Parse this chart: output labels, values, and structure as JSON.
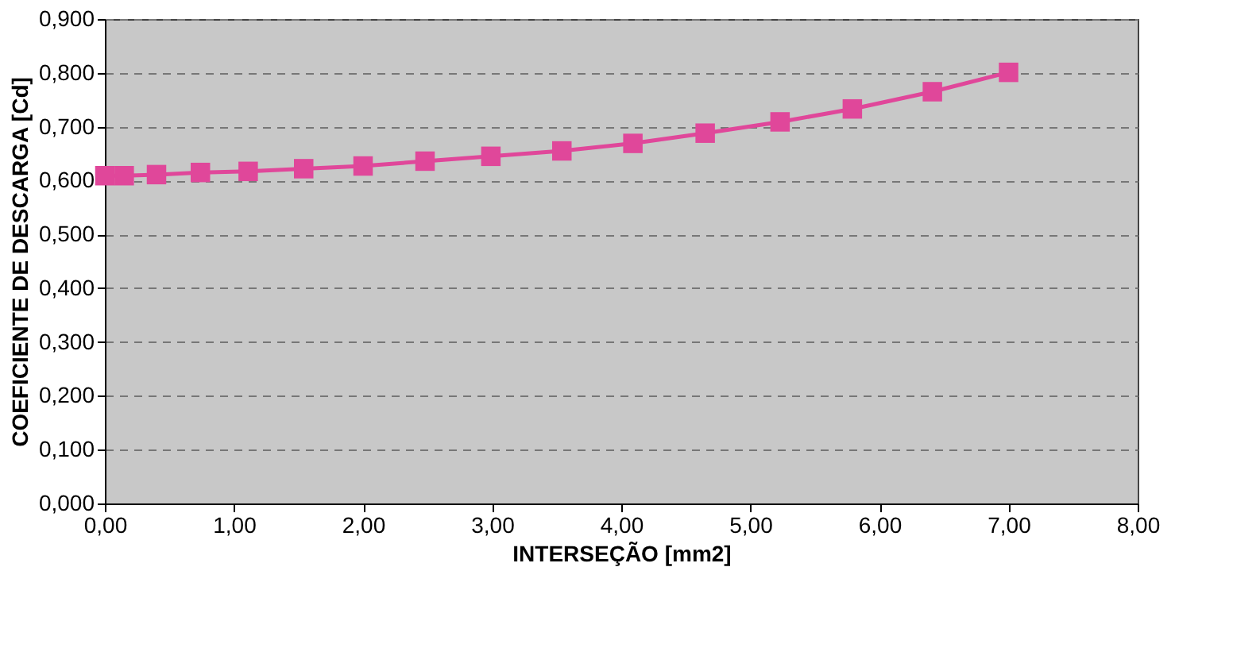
{
  "chart_data": {
    "type": "line",
    "xlabel": "INTERSEÇÃO [mm2]",
    "ylabel": "COEFICIENTE DE DESCARGA [Cd]",
    "series": [
      {
        "color": "#e0479a",
        "x": [
          0,
          0.15,
          0.4,
          0.74,
          1.11,
          1.54,
          2.0,
          2.48,
          2.99,
          3.54,
          4.09,
          4.65,
          5.23,
          5.79,
          6.41,
          7.0
        ],
        "values": [
          0.609,
          0.609,
          0.611,
          0.615,
          0.617,
          0.622,
          0.627,
          0.636,
          0.645,
          0.655,
          0.669,
          0.688,
          0.709,
          0.733,
          0.765,
          0.801
        ]
      }
    ],
    "xlim": [
      0,
      8
    ],
    "ylim": [
      0,
      0.9
    ],
    "xticks": [
      {
        "value": 0,
        "label": "0,00"
      },
      {
        "value": 1,
        "label": "1,00"
      },
      {
        "value": 2,
        "label": "2,00"
      },
      {
        "value": 3,
        "label": "3,00"
      },
      {
        "value": 4,
        "label": "4,00"
      },
      {
        "value": 5,
        "label": "5,00"
      },
      {
        "value": 6,
        "label": "6,00"
      },
      {
        "value": 7,
        "label": "7,00"
      },
      {
        "value": 8,
        "label": "8,00"
      }
    ],
    "yticks": [
      {
        "value": 0,
        "label": "0,000"
      },
      {
        "value": 0.1,
        "label": "0,100"
      },
      {
        "value": 0.2,
        "label": "0,200"
      },
      {
        "value": 0.3,
        "label": "0,300"
      },
      {
        "value": 0.4,
        "label": "0,400"
      },
      {
        "value": 0.5,
        "label": "0,500"
      },
      {
        "value": 0.6,
        "label": "0,600"
      },
      {
        "value": 0.7,
        "label": "0,700"
      },
      {
        "value": 0.8,
        "label": "0,800"
      },
      {
        "value": 0.9,
        "label": "0,900"
      }
    ],
    "grid": "y",
    "marker": "square",
    "line_style": "solid"
  }
}
